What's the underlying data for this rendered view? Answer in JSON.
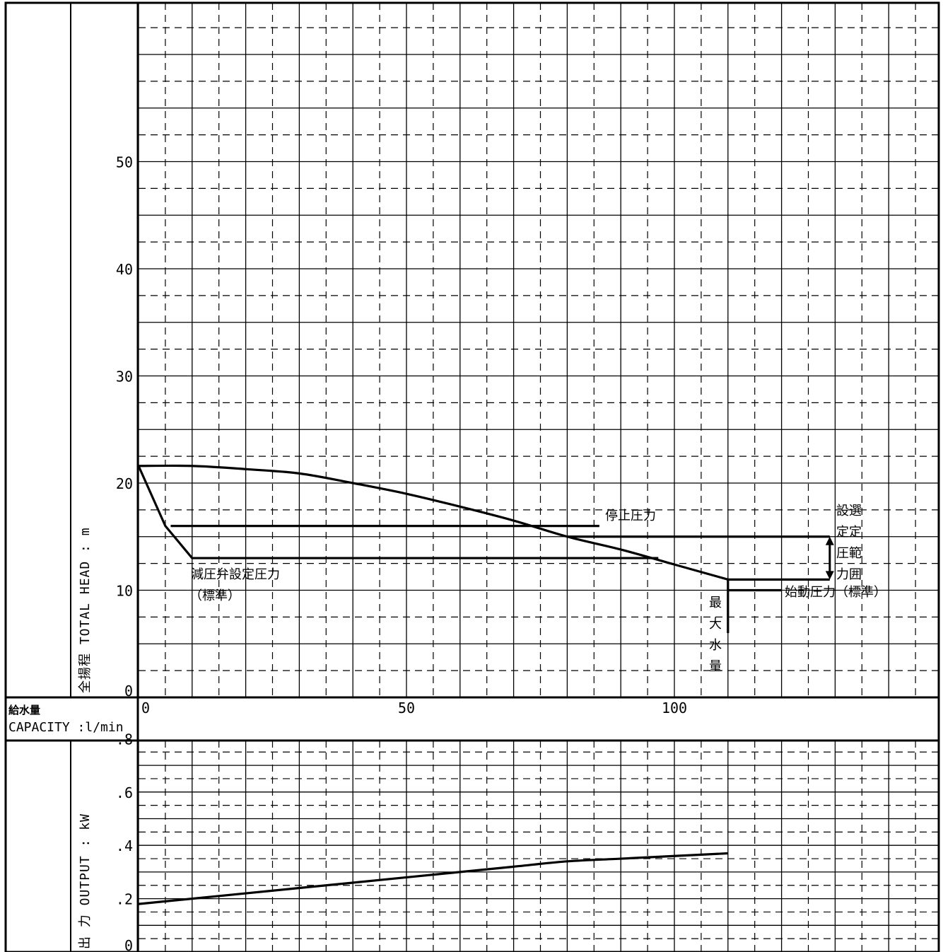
{
  "chart_data": [
    {
      "type": "line",
      "panel": "head",
      "ylabel": "全揚程 TOTAL HEAD : m",
      "ylim": [
        0,
        65
      ],
      "xlim": [
        0,
        150
      ],
      "grid": true,
      "y_ticks": [
        "0",
        "10",
        "20",
        "30",
        "40",
        "50"
      ],
      "series": [
        {
          "x": [
            0,
            10,
            20,
            30,
            40,
            50,
            60,
            70,
            80,
            90,
            100,
            110
          ],
          "y": [
            21.6,
            21.6,
            21.3,
            20.9,
            20.0,
            19.0,
            17.8,
            16.5,
            15.0,
            13.8,
            12.4,
            11.0
          ]
        },
        {
          "x": [
            0,
            5,
            10,
            97
          ],
          "y": [
            21.6,
            16.0,
            13.0,
            13.0
          ]
        }
      ],
      "reference_lines": [
        {
          "x": [
            6,
            86
          ],
          "y": [
            16.0,
            16.0
          ]
        },
        {
          "x": [
            80,
            129
          ],
          "y": [
            15.0,
            15.0
          ]
        },
        {
          "x": [
            110,
            129
          ],
          "y": [
            11.0,
            11.0
          ]
        },
        {
          "x": [
            110,
            120
          ],
          "y": [
            10.0,
            10.0
          ]
        },
        {
          "x": [
            110,
            110
          ],
          "y": [
            6.0,
            11.0
          ]
        }
      ],
      "range_arrow": {
        "x": 129,
        "y": [
          11.0,
          15.0
        ]
      },
      "annotations": {
        "stop_pressure": "停止圧力",
        "prv_setting_line1": "減圧弁設定圧力",
        "prv_setting_line2": "（標準）",
        "start_pressure": "始動圧力（標準）",
        "max_flow": [
          "最",
          "大",
          "水",
          "量"
        ],
        "setting_range_col1": [
          "設",
          "定",
          "圧",
          "力"
        ],
        "setting_range_col2": [
          "選",
          "定",
          "範",
          "囲"
        ]
      }
    },
    {
      "type": "line",
      "panel": "output",
      "ylabel": "出 力 OUTPUT : kW",
      "ylim": [
        0,
        0.8
      ],
      "xlim": [
        0,
        150
      ],
      "grid": true,
      "y_ticks": [
        ".2",
        ".4",
        ".6",
        ".8"
      ],
      "y_tick_zero": "0",
      "series": [
        {
          "x": [
            0,
            10,
            20,
            30,
            40,
            50,
            60,
            70,
            80,
            90,
            100,
            110
          ],
          "y": [
            0.18,
            0.2,
            0.22,
            0.24,
            0.26,
            0.28,
            0.3,
            0.32,
            0.34,
            0.35,
            0.36,
            0.37
          ]
        }
      ]
    }
  ],
  "capacity_axis": {
    "label_jp": "給水量",
    "label_en": "CAPACITY :l/min",
    "ticks": [
      "0",
      "50",
      "100"
    ],
    "tick_values": [
      0,
      50,
      100
    ]
  }
}
